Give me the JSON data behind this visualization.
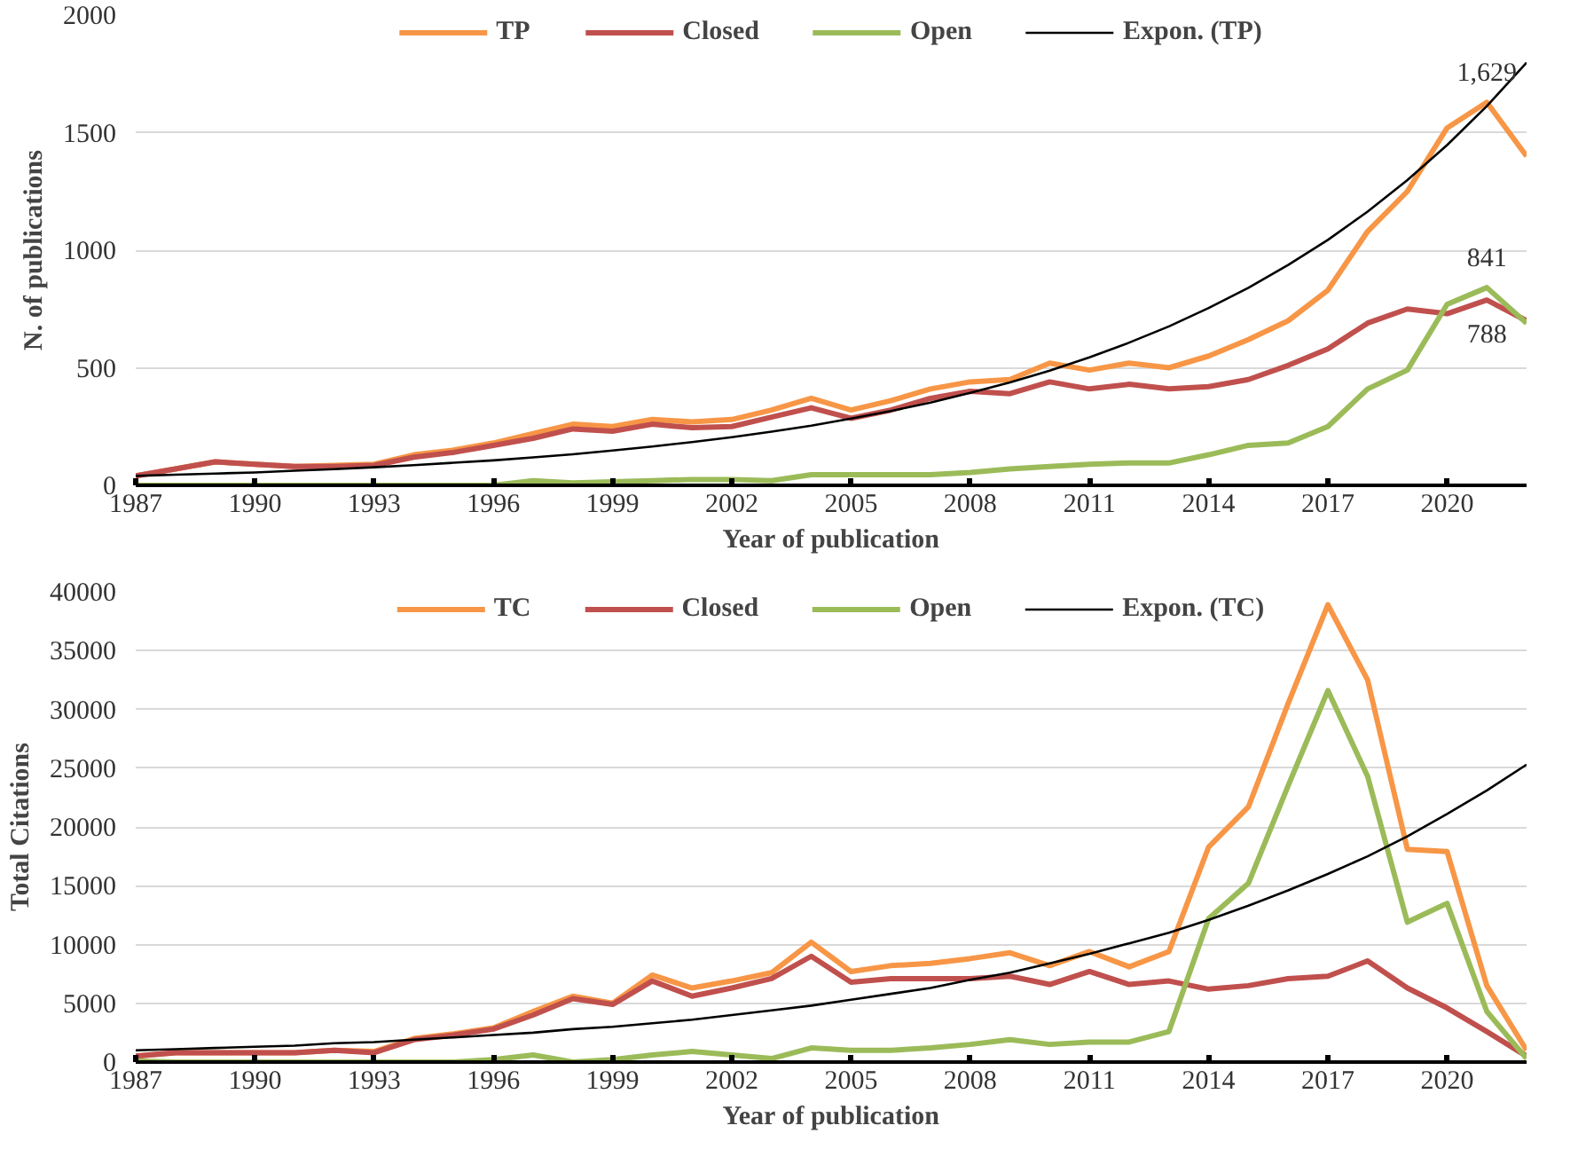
{
  "chart_data": [
    {
      "type": "line",
      "xlabel": "Year of publication",
      "ylabel": "N. of publications",
      "x": [
        1987,
        1988,
        1989,
        1990,
        1991,
        1992,
        1993,
        1994,
        1995,
        1996,
        1997,
        1998,
        1999,
        2000,
        2001,
        2002,
        2003,
        2004,
        2005,
        2006,
        2007,
        2008,
        2009,
        2010,
        2011,
        2012,
        2013,
        2014,
        2015,
        2016,
        2017,
        2018,
        2019,
        2020,
        2021,
        2022
      ],
      "xlim": [
        1987,
        2022
      ],
      "xticks": [
        1987,
        1990,
        1993,
        1996,
        1999,
        2002,
        2005,
        2008,
        2011,
        2014,
        2017,
        2020
      ],
      "ylim": [
        0,
        2000
      ],
      "yticks": [
        0,
        500,
        1000,
        1500,
        2000
      ],
      "grid": "y",
      "legend": "top",
      "marker": "none",
      "series": [
        {
          "name": "TP",
          "color": "#f79646",
          "values": [
            40,
            70,
            100,
            90,
            80,
            85,
            90,
            130,
            150,
            180,
            220,
            260,
            250,
            280,
            270,
            280,
            320,
            370,
            320,
            360,
            410,
            440,
            450,
            520,
            490,
            520,
            500,
            550,
            620,
            700,
            830,
            1080,
            1250,
            1520,
            1629,
            1400
          ],
          "value_labels": [
            null,
            null,
            null,
            null,
            null,
            null,
            null,
            null,
            null,
            null,
            null,
            null,
            null,
            null,
            null,
            null,
            null,
            null,
            null,
            null,
            null,
            null,
            null,
            null,
            null,
            null,
            null,
            null,
            null,
            null,
            null,
            null,
            null,
            null,
            "1,629",
            null
          ]
        },
        {
          "name": "Closed",
          "color": "#c0504d",
          "values": [
            40,
            70,
            100,
            90,
            80,
            80,
            85,
            120,
            140,
            170,
            200,
            240,
            230,
            260,
            245,
            250,
            290,
            330,
            285,
            320,
            370,
            400,
            390,
            440,
            410,
            430,
            410,
            420,
            450,
            510,
            580,
            690,
            750,
            730,
            788,
            700
          ],
          "value_labels": [
            null,
            null,
            null,
            null,
            null,
            null,
            null,
            null,
            null,
            null,
            null,
            null,
            null,
            null,
            null,
            null,
            null,
            null,
            null,
            null,
            null,
            null,
            null,
            null,
            null,
            null,
            null,
            null,
            null,
            null,
            null,
            null,
            null,
            null,
            "788",
            null
          ]
        },
        {
          "name": "Open",
          "color": "#9bbb59",
          "values": [
            0,
            0,
            0,
            0,
            0,
            0,
            0,
            0,
            0,
            0,
            20,
            10,
            15,
            20,
            25,
            25,
            20,
            45,
            45,
            45,
            45,
            55,
            70,
            80,
            90,
            95,
            95,
            130,
            170,
            180,
            250,
            410,
            490,
            770,
            841,
            690
          ],
          "value_labels": [
            null,
            null,
            null,
            null,
            null,
            null,
            null,
            null,
            null,
            null,
            null,
            null,
            null,
            null,
            null,
            null,
            null,
            null,
            null,
            null,
            null,
            null,
            null,
            null,
            null,
            null,
            null,
            null,
            null,
            null,
            null,
            null,
            null,
            null,
            "841",
            null
          ]
        },
        {
          "name": "Expon. (TP)",
          "color": "#000000",
          "values": [
            40,
            45,
            50,
            55,
            62,
            69,
            77,
            86,
            96,
            106,
            119,
            132,
            148,
            165,
            184,
            205,
            228,
            254,
            284,
            316,
            352,
            393,
            438,
            488,
            544,
            607,
            676,
            754,
            840,
            937,
            1044,
            1164,
            1298,
            1447,
            1613,
            1798
          ]
        }
      ]
    },
    {
      "type": "line",
      "xlabel": "Year of publication",
      "ylabel": "Total Citations",
      "x": [
        1987,
        1988,
        1989,
        1990,
        1991,
        1992,
        1993,
        1994,
        1995,
        1996,
        1997,
        1998,
        1999,
        2000,
        2001,
        2002,
        2003,
        2004,
        2005,
        2006,
        2007,
        2008,
        2009,
        2010,
        2011,
        2012,
        2013,
        2014,
        2015,
        2016,
        2017,
        2018,
        2019,
        2020,
        2021,
        2022
      ],
      "xlim": [
        1987,
        2022
      ],
      "xticks": [
        1987,
        1990,
        1993,
        1996,
        1999,
        2002,
        2005,
        2008,
        2011,
        2014,
        2017,
        2020
      ],
      "ylim": [
        0,
        40000
      ],
      "yticks": [
        0,
        5000,
        10000,
        15000,
        20000,
        25000,
        30000,
        35000,
        40000
      ],
      "grid": "y",
      "legend": "top",
      "marker": "none",
      "series": [
        {
          "name": "TC",
          "color": "#f79646",
          "values": [
            500,
            800,
            800,
            800,
            800,
            1000,
            900,
            2000,
            2400,
            2900,
            4300,
            5600,
            5000,
            7400,
            6300,
            6900,
            7600,
            10200,
            7700,
            8200,
            8400,
            8800,
            9300,
            8200,
            9400,
            8100,
            9400,
            18300,
            21700,
            30500,
            38900,
            32500,
            18100,
            17900,
            6500,
            1000
          ]
        },
        {
          "name": "Closed",
          "color": "#c0504d",
          "values": [
            500,
            800,
            800,
            800,
            800,
            1000,
            800,
            1900,
            2300,
            2800,
            4000,
            5400,
            4900,
            6900,
            5600,
            6300,
            7100,
            9000,
            6800,
            7100,
            7100,
            7100,
            7300,
            6600,
            7700,
            6600,
            6900,
            6200,
            6500,
            7100,
            7300,
            8600,
            6300,
            4600,
            2600,
            500
          ]
        },
        {
          "name": "Open",
          "color": "#9bbb59",
          "values": [
            100,
            0,
            0,
            0,
            0,
            0,
            0,
            0,
            0,
            200,
            600,
            0,
            200,
            600,
            900,
            600,
            300,
            1200,
            1000,
            1000,
            1200,
            1500,
            1900,
            1500,
            1700,
            1700,
            2600,
            12200,
            15200,
            23500,
            31600,
            24300,
            11900,
            13500,
            4300,
            300
          ]
        },
        {
          "name": "Expon. (TC)",
          "color": "#000000",
          "values": [
            1000,
            1100,
            1200,
            1300,
            1400,
            1600,
            1700,
            1900,
            2100,
            2300,
            2500,
            2800,
            3000,
            3300,
            3600,
            4000,
            4400,
            4800,
            5300,
            5800,
            6300,
            7000,
            7600,
            8400,
            9200,
            10100,
            11000,
            12100,
            13300,
            14600,
            16000,
            17500,
            19200,
            21100,
            23100,
            25300
          ]
        }
      ]
    }
  ]
}
